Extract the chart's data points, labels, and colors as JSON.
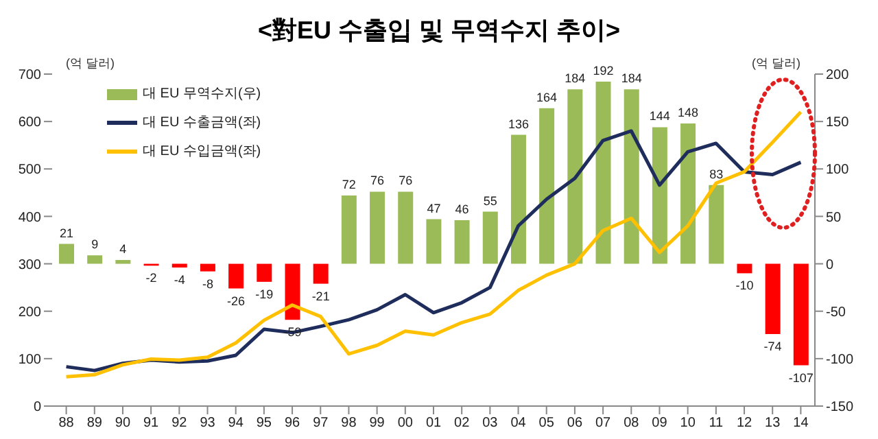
{
  "chart_data": {
    "type": "bar",
    "title": "<對EU 수출입 및 무역수지 추이>",
    "categories": [
      "88",
      "89",
      "90",
      "91",
      "92",
      "93",
      "94",
      "95",
      "96",
      "97",
      "98",
      "99",
      "00",
      "01",
      "02",
      "03",
      "04",
      "05",
      "06",
      "07",
      "08",
      "09",
      "10",
      "11",
      "12",
      "13",
      "14"
    ],
    "series": [
      {
        "name": "대 EU 무역수지(우)",
        "axis": "y2",
        "color": "#9bbb59",
        "colors": [
          "#9bbb59",
          "#9bbb59",
          "#9bbb59",
          "#ff0000",
          "#ff0000",
          "#ff0000",
          "#ff0000",
          "#ff0000",
          "#ff0000",
          "#ff0000",
          "#9bbb59",
          "#9bbb59",
          "#9bbb59",
          "#9bbb59",
          "#9bbb59",
          "#9bbb59",
          "#9bbb59",
          "#9bbb59",
          "#9bbb59",
          "#9bbb59",
          "#9bbb59",
          "#9bbb59",
          "#9bbb59",
          "#9bbb59",
          "#ff0000",
          "#ff0000",
          "#ff0000"
        ],
        "values": [
          21,
          9,
          4,
          -2,
          -4,
          -8,
          -26,
          -19,
          -59,
          -21,
          72,
          76,
          76,
          47,
          46,
          55,
          136,
          164,
          184,
          192,
          184,
          144,
          148,
          83,
          -10,
          -74,
          -107
        ],
        "value_labels": [
          "21",
          "9",
          "4",
          "-2",
          "-4",
          "-8",
          "-26",
          "-19",
          "-59",
          "-21",
          "72",
          "76",
          "76",
          "47",
          "46",
          "55",
          "136",
          "164",
          "184",
          "192",
          "184",
          "144",
          "148",
          "83",
          "-10",
          "-74",
          "-107"
        ]
      },
      {
        "name": "대 EU 수출금액(좌)",
        "type": "line",
        "color": "#1f2d5c",
        "values": [
          83,
          75,
          90,
          97,
          93,
          95,
          107,
          162,
          155,
          168,
          182,
          203,
          235,
          197,
          218,
          250,
          380,
          436,
          480,
          560,
          580,
          466,
          536,
          554,
          494,
          488,
          514
        ]
      },
      {
        "name": "대 EU 수입금액(좌)",
        "type": "line",
        "color": "#ffc000",
        "values": [
          62,
          66,
          87,
          99,
          97,
          103,
          133,
          181,
          213,
          189,
          110,
          128,
          158,
          150,
          176,
          194,
          244,
          276,
          300,
          370,
          396,
          324,
          380,
          470,
          494,
          556,
          620
        ]
      }
    ],
    "ylim": [
      0,
      700
    ],
    "yticks": [
      0,
      100,
      200,
      300,
      400,
      500,
      600,
      700
    ],
    "y2lim": [
      -150,
      200
    ],
    "y2ticks": [
      -150,
      -100,
      -50,
      0,
      50,
      100,
      150,
      200
    ],
    "legend": "top left",
    "grid": false,
    "marker": "none",
    "annotations": [
      "(억 달러)",
      "(억 달러)"
    ]
  }
}
